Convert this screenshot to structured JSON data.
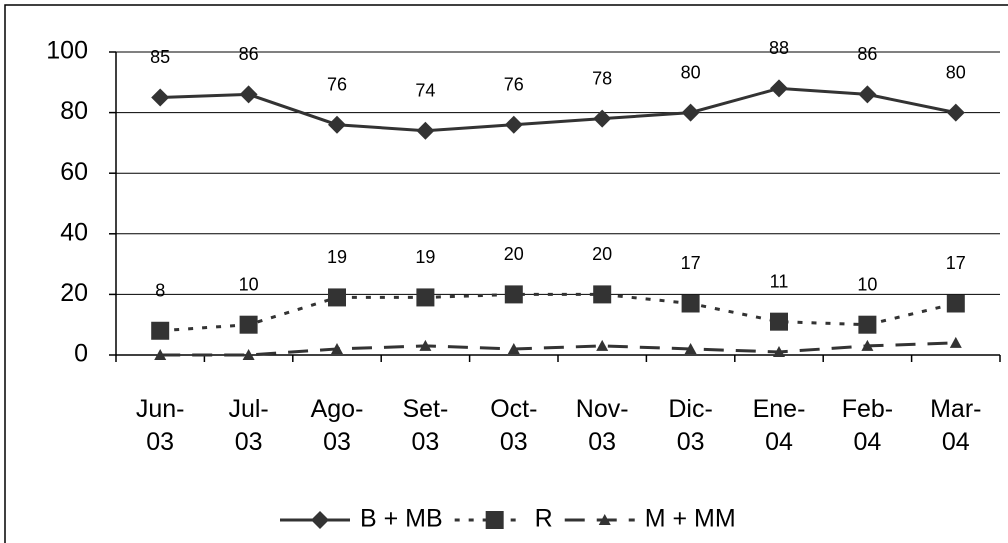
{
  "chart_data": {
    "type": "line",
    "categories": [
      "Jun-03",
      "Jul-03",
      "Ago-03",
      "Set-03",
      "Oct-03",
      "Nov-03",
      "Dic-03",
      "Ene-04",
      "Feb-04",
      "Mar-04"
    ],
    "series": [
      {
        "name": "B + MB",
        "color": "#333333",
        "marker": "diamond",
        "dash": "solid",
        "data_labels": true,
        "values": [
          85,
          86,
          76,
          74,
          76,
          78,
          80,
          88,
          86,
          80
        ]
      },
      {
        "name": "R",
        "color": "#333333",
        "marker": "square",
        "dash": "dotted",
        "data_labels": true,
        "values": [
          8,
          10,
          19,
          19,
          20,
          20,
          17,
          11,
          10,
          17
        ]
      },
      {
        "name": "M + MM",
        "color": "#333333",
        "marker": "triangle",
        "dash": "dashed",
        "data_labels": false,
        "values": [
          0,
          0,
          2,
          3,
          2,
          3,
          2,
          1,
          3,
          4
        ]
      }
    ],
    "ylim": [
      0,
      100
    ],
    "yticks": [
      0,
      20,
      40,
      60,
      80,
      100
    ],
    "grid": true,
    "legend": "bottom"
  }
}
